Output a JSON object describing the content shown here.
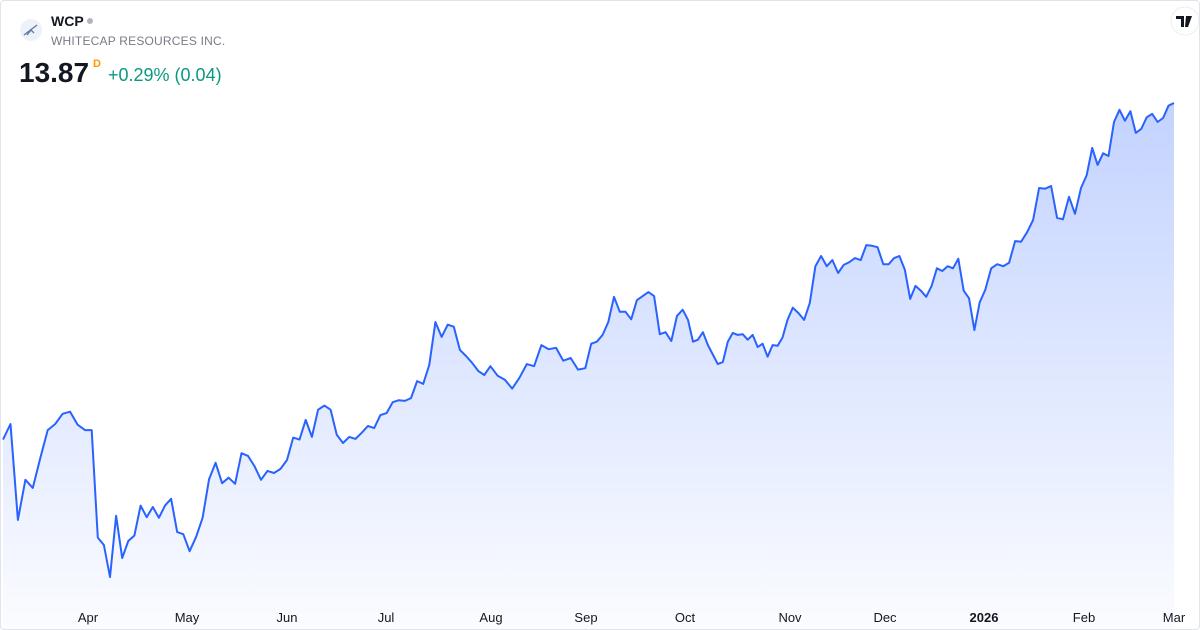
{
  "chart_data": {
    "type": "area",
    "title": "WCP",
    "subtitle": "WHITECAP RESOURCES INC.",
    "last_price": 13.87,
    "interval": "D",
    "change": "+0.29% (0.04)",
    "color": "#2962ff",
    "values": [
      8.92,
      9.15,
      7.74,
      8.33,
      8.21,
      8.65,
      9.06,
      9.15,
      9.3,
      9.33,
      9.14,
      9.06,
      9.06,
      7.48,
      7.37,
      6.9,
      7.8,
      7.18,
      7.43,
      7.51,
      7.95,
      7.78,
      7.93,
      7.77,
      7.95,
      8.05,
      7.56,
      7.53,
      7.28,
      7.49,
      7.77,
      8.34,
      8.58,
      8.28,
      8.36,
      8.27,
      8.72,
      8.68,
      8.53,
      8.33,
      8.46,
      8.43,
      8.49,
      8.62,
      8.95,
      8.92,
      9.21,
      8.96,
      9.36,
      9.42,
      9.36,
      8.99,
      8.87,
      8.96,
      8.93,
      9.02,
      9.12,
      9.09,
      9.28,
      9.31,
      9.47,
      9.5,
      9.49,
      9.53,
      9.78,
      9.74,
      10.02,
      10.65,
      10.43,
      10.61,
      10.58,
      10.24,
      10.15,
      10.05,
      9.93,
      9.87,
      10.0,
      9.86,
      9.8,
      9.67,
      9.83,
      10.03,
      10.0,
      10.31,
      10.25,
      10.27,
      10.08,
      10.12,
      9.95,
      9.97,
      10.33,
      10.36,
      10.46,
      10.65,
      11.02,
      10.8,
      10.8,
      10.69,
      10.97,
      11.03,
      11.09,
      11.03,
      10.47,
      10.5,
      10.37,
      10.74,
      10.83,
      10.68,
      10.36,
      10.39,
      10.5,
      10.31,
      10.17,
      10.03,
      10.06,
      10.36,
      10.49,
      10.46,
      10.47,
      10.39,
      10.46,
      10.28,
      10.33,
      10.14,
      10.31,
      10.3,
      10.42,
      10.68,
      10.86,
      10.78,
      10.68,
      10.93,
      11.47,
      11.62,
      11.47,
      11.56,
      11.37,
      11.49,
      11.53,
      11.59,
      11.56,
      11.78,
      11.77,
      11.75,
      11.5,
      11.5,
      11.59,
      11.62,
      11.42,
      10.99,
      11.18,
      11.11,
      11.02,
      11.18,
      11.44,
      11.4,
      11.47,
      11.44,
      11.58,
      11.11,
      11.0,
      10.53,
      10.94,
      11.12,
      11.44,
      11.5,
      11.47,
      11.52,
      11.84,
      11.83,
      11.97,
      12.15,
      12.62,
      12.61,
      12.65,
      12.18,
      12.16,
      12.49,
      12.24,
      12.62,
      12.81,
      13.21,
      12.96,
      13.13,
      13.09,
      13.59,
      13.77,
      13.61,
      13.75,
      13.43,
      13.49,
      13.66,
      13.71,
      13.59,
      13.65,
      13.83,
      13.87
    ],
    "xticks": [
      {
        "value": 11.4,
        "label": "Apr"
      },
      {
        "value": 27.6,
        "label": "May"
      },
      {
        "value": 43,
        "label": "Jun"
      },
      {
        "value": 58.9,
        "label": "Jul"
      },
      {
        "value": 76.1,
        "label": "Aug"
      },
      {
        "value": 89.1,
        "label": "Sep"
      },
      {
        "value": 106.4,
        "label": "Oct"
      },
      {
        "value": 127.5,
        "label": "Nov"
      },
      {
        "value": 144.3,
        "label": "Dec"
      },
      {
        "value": 162.8,
        "label": "2026"
      },
      {
        "value": 179.5,
        "label": "Feb"
      },
      {
        "value": 196,
        "label": "Mar"
      }
    ]
  }
}
